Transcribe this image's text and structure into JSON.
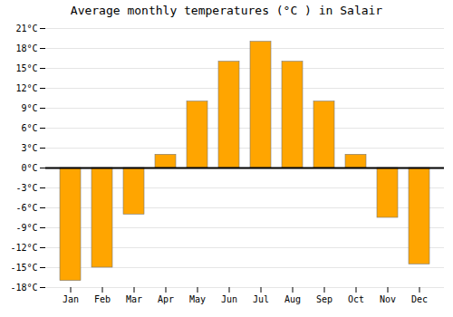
{
  "chart_data": {
    "type": "bar",
    "title": "Average monthly temperatures (°C ) in Salair",
    "categories": [
      "Jan",
      "Feb",
      "Mar",
      "Apr",
      "May",
      "Jun",
      "Jul",
      "Aug",
      "Sep",
      "Oct",
      "Nov",
      "Dec"
    ],
    "values": [
      -17,
      -15,
      -7,
      2,
      10,
      16,
      19,
      16,
      10,
      2,
      -7.5,
      -14.5
    ],
    "color": "#FFA500",
    "ylim": [
      -18,
      21
    ],
    "yticks": [
      {
        "value": -18,
        "label": "-18°C"
      },
      {
        "value": -15,
        "label": "-15°C"
      },
      {
        "value": -12,
        "label": "-12°C"
      },
      {
        "value": -9,
        "label": "-9°C"
      },
      {
        "value": -6,
        "label": "-6°C"
      },
      {
        "value": -3,
        "label": "-3°C"
      },
      {
        "value": 0,
        "label": "0°C"
      },
      {
        "value": 3,
        "label": "3°C"
      },
      {
        "value": 6,
        "label": "6°C"
      },
      {
        "value": 9,
        "label": "9°C"
      },
      {
        "value": 12,
        "label": "12°C"
      },
      {
        "value": 15,
        "label": "15°C"
      },
      {
        "value": 18,
        "label": "18°C"
      },
      {
        "value": 21,
        "label": "21°C"
      }
    ],
    "grid": true
  }
}
